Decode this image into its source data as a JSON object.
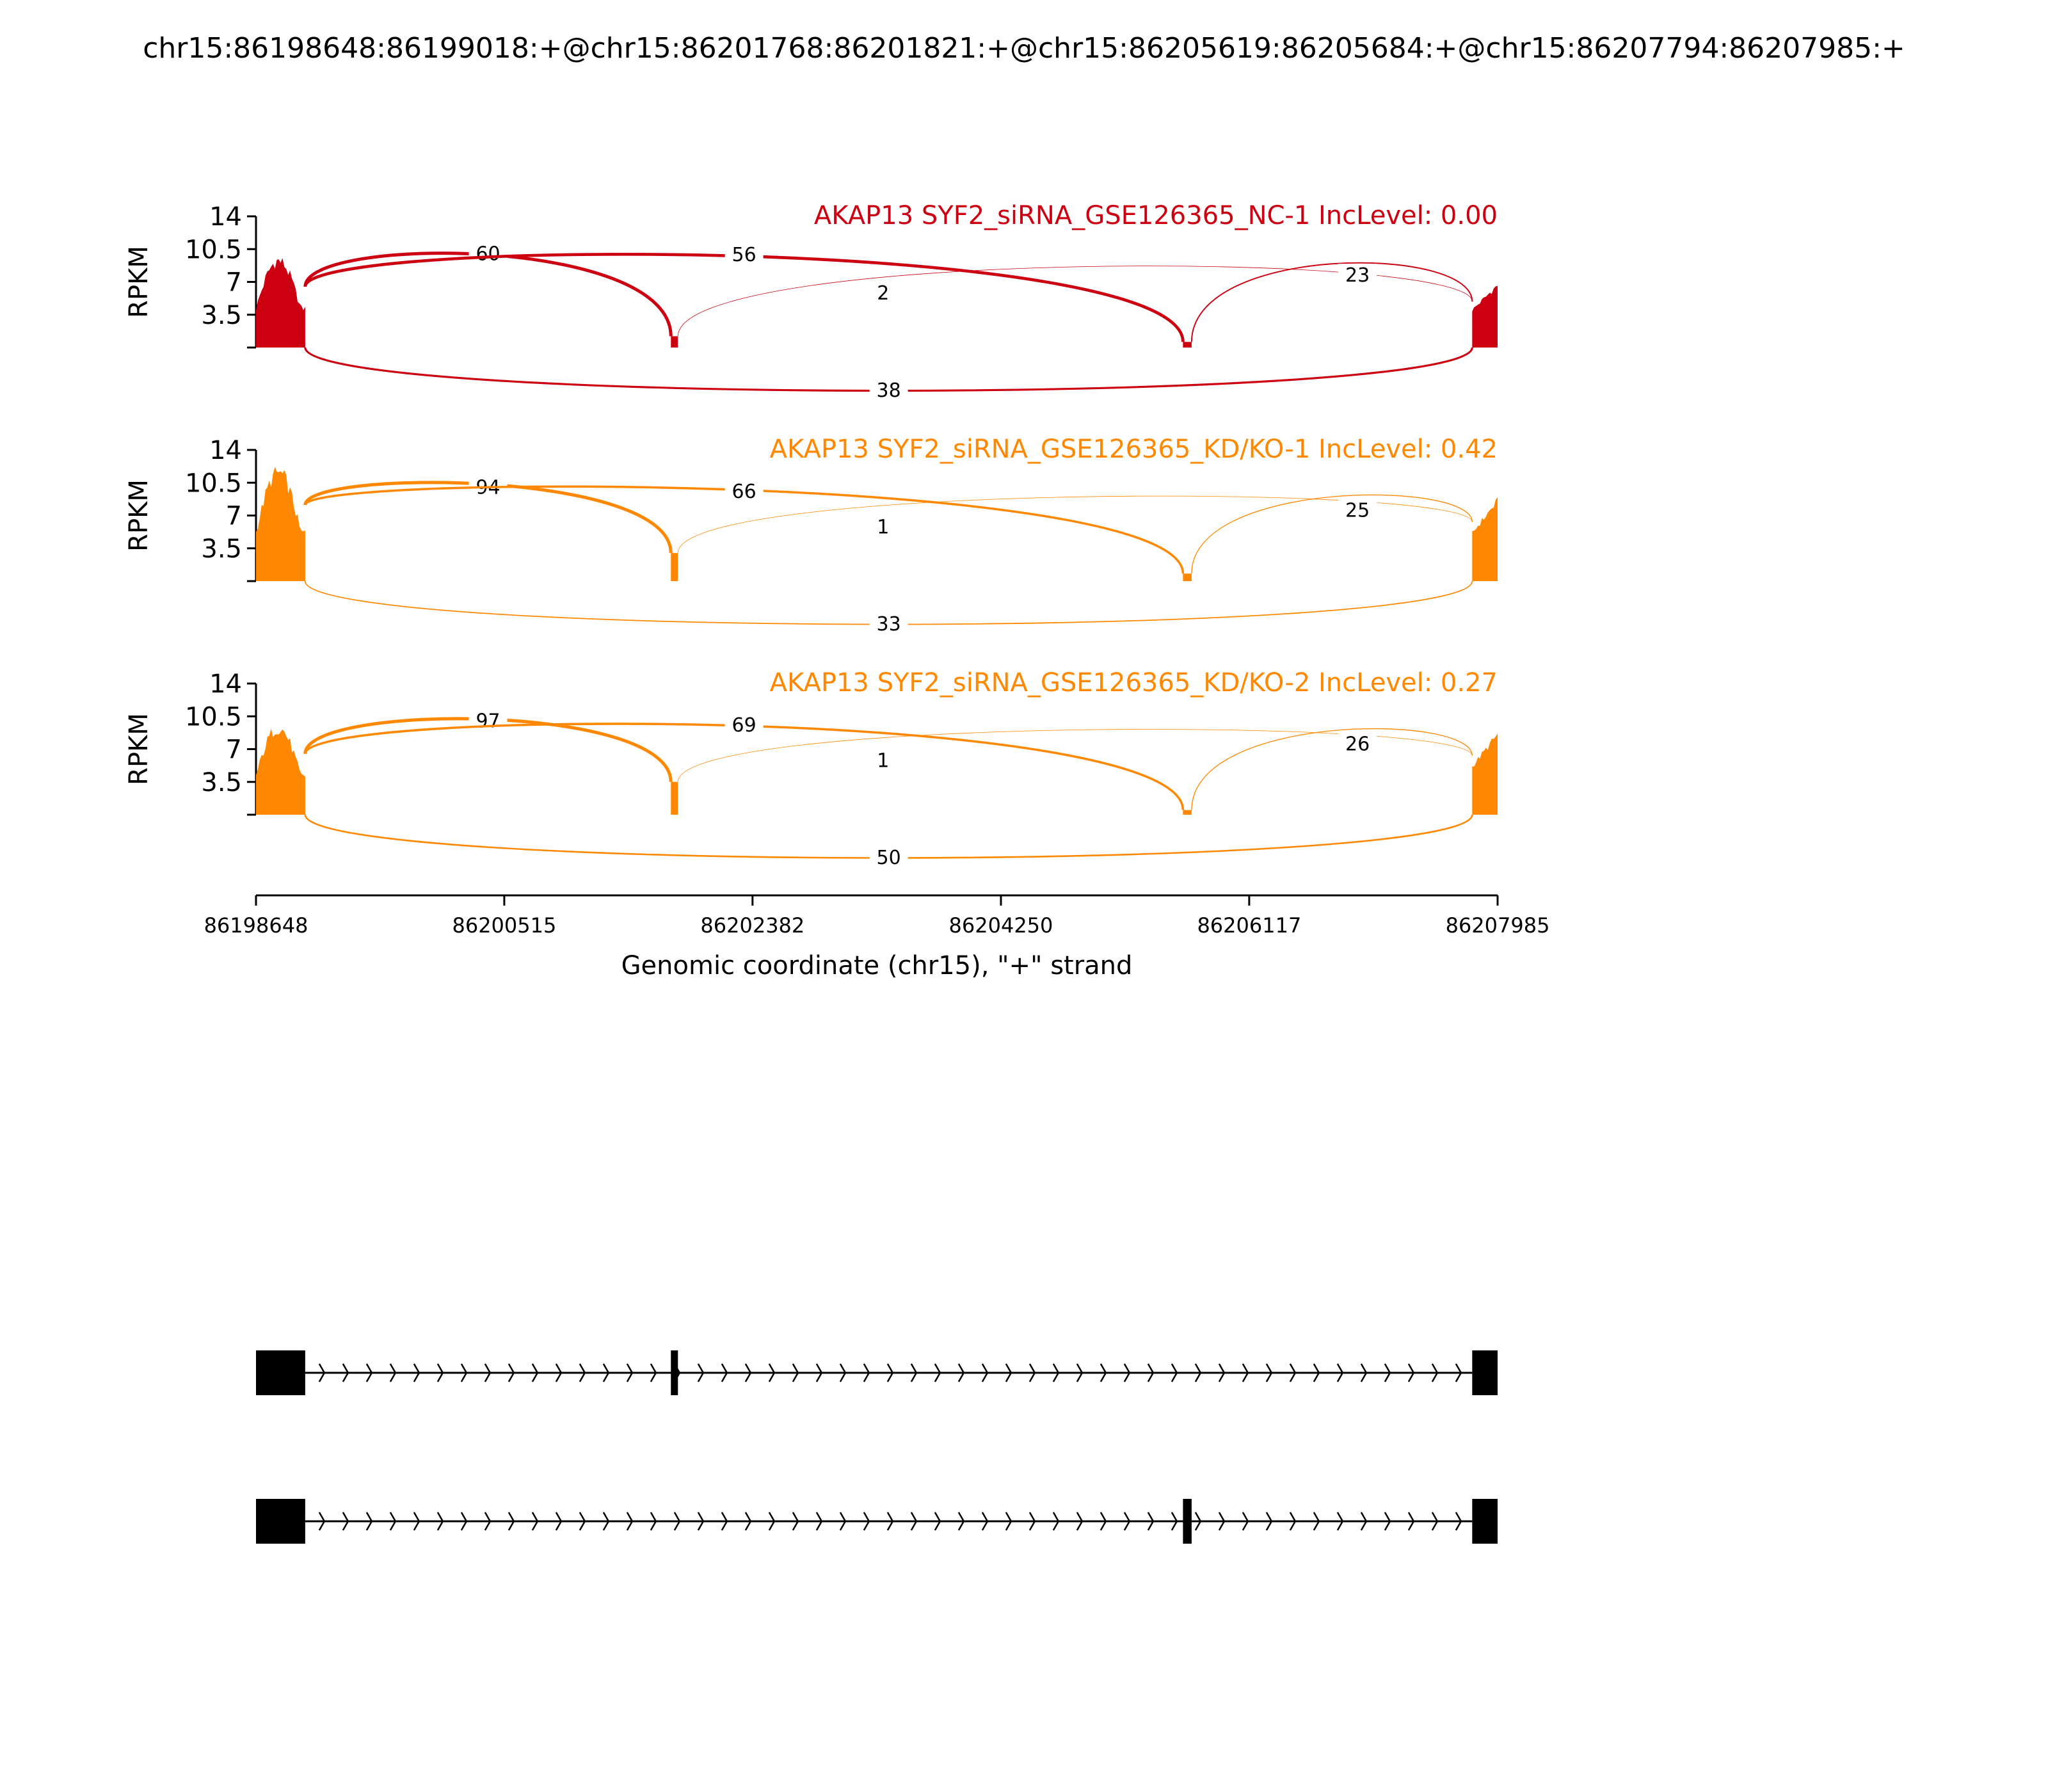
{
  "chart_data": {
    "type": "sashimi",
    "title": "chr15:86198648:86199018:+@chr15:86201768:86201821:+@chr15:86205619:86205684:+@chr15:86207794:86207985:+",
    "xlabel": "Genomic coordinate (chr15), \"+\" strand",
    "xlim": [
      86198648,
      86207985
    ],
    "xticks": [
      86198648,
      86200515,
      86202382,
      86204250,
      86206117,
      86207985
    ],
    "exons": [
      {
        "start": 86198648,
        "end": 86199018
      },
      {
        "start": 86201768,
        "end": 86201821
      },
      {
        "start": 86205619,
        "end": 86205684
      },
      {
        "start": 86207794,
        "end": 86207985
      }
    ],
    "isoforms": [
      {
        "exons": [
          0,
          1,
          3
        ]
      },
      {
        "exons": [
          0,
          2,
          3
        ]
      }
    ],
    "panels": [
      {
        "title": "AKAP13 SYF2_siRNA_GSE126365_NC-1 IncLevel: 0.00",
        "color": "#cc0011",
        "ylabel": "RPKM",
        "ylim": [
          0,
          14
        ],
        "yticks": [
          3.5,
          7,
          10.5,
          14
        ],
        "peaks": [
          10.0,
          1.2,
          0.6,
          7.0
        ],
        "junctions": [
          {
            "from": 0,
            "to": 1,
            "count": 60,
            "side": "above"
          },
          {
            "from": 1,
            "to": 3,
            "count": 2,
            "side": "above"
          },
          {
            "from": 0,
            "to": 2,
            "count": 56,
            "side": "above"
          },
          {
            "from": 2,
            "to": 3,
            "count": 23,
            "side": "above"
          },
          {
            "from": 0,
            "to": 3,
            "count": 38,
            "side": "below"
          }
        ]
      },
      {
        "title": "AKAP13 SYF2_siRNA_GSE126365_KD/KO-1 IncLevel: 0.42",
        "color": "#ff8800",
        "ylabel": "RPKM",
        "ylim": [
          0,
          14
        ],
        "yticks": [
          3.5,
          7,
          10.5,
          14
        ],
        "peaks": [
          12.5,
          3.0,
          0.8,
          9.0
        ],
        "junctions": [
          {
            "from": 0,
            "to": 1,
            "count": 94,
            "side": "above"
          },
          {
            "from": 1,
            "to": 3,
            "count": 1,
            "side": "above"
          },
          {
            "from": 0,
            "to": 2,
            "count": 66,
            "side": "above"
          },
          {
            "from": 2,
            "to": 3,
            "count": 25,
            "side": "above"
          },
          {
            "from": 0,
            "to": 3,
            "count": 33,
            "side": "below"
          }
        ]
      },
      {
        "title": "AKAP13 SYF2_siRNA_GSE126365_KD/KO-2 IncLevel: 0.27",
        "color": "#ff8800",
        "ylabel": "RPKM",
        "ylim": [
          0,
          14
        ],
        "yticks": [
          3.5,
          7,
          10.5,
          14
        ],
        "peaks": [
          10.0,
          3.5,
          0.5,
          9.0
        ],
        "junctions": [
          {
            "from": 0,
            "to": 1,
            "count": 97,
            "side": "above"
          },
          {
            "from": 1,
            "to": 3,
            "count": 1,
            "side": "above"
          },
          {
            "from": 0,
            "to": 2,
            "count": 69,
            "side": "above"
          },
          {
            "from": 2,
            "to": 3,
            "count": 26,
            "side": "above"
          },
          {
            "from": 0,
            "to": 3,
            "count": 50,
            "side": "below"
          }
        ]
      }
    ]
  }
}
